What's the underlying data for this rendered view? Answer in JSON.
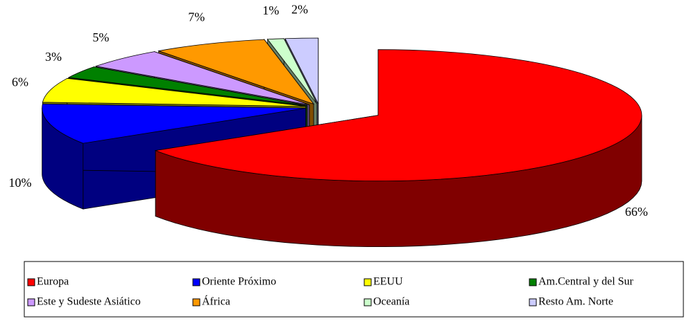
{
  "chart_data": {
    "type": "pie3d",
    "categories": [
      "Europa",
      "Oriente Próximo",
      "EEUU",
      "Am.Central y del Sur",
      "Este y Sudeste Asiático",
      "África",
      "Oceanía",
      "Resto Am. Norte"
    ],
    "values": [
      66,
      10,
      6,
      3,
      5,
      7,
      1,
      2
    ],
    "value_labels": [
      "66%",
      "10%",
      "6%",
      "3%",
      "5%",
      "7%",
      "1%",
      "2%"
    ],
    "colors": [
      "#ff0000",
      "#0000ff",
      "#ffff00",
      "#008000",
      "#cc99ff",
      "#ff9900",
      "#ccffcc",
      "#ccccff"
    ],
    "legend": "bottom"
  }
}
